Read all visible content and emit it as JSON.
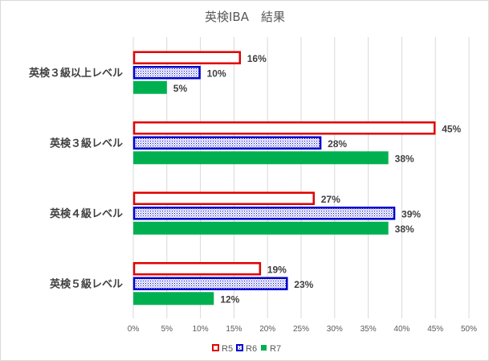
{
  "chart_data": {
    "type": "bar",
    "orientation": "horizontal",
    "title": "英検IBA　結果",
    "categories": [
      "英検３級以上レベル",
      "英検３級レベル",
      "英検４級レベル",
      "英検５級レベル"
    ],
    "series": [
      {
        "name": "R5",
        "values": [
          16,
          45,
          27,
          19
        ],
        "color": "#e00000",
        "fill": "#ffffff"
      },
      {
        "name": "R6",
        "values": [
          10,
          28,
          39,
          23
        ],
        "color": "#0000cc",
        "fill": "dotted"
      },
      {
        "name": "R7",
        "values": [
          5,
          38,
          38,
          12
        ],
        "color": "#00b050",
        "fill": "#00b050"
      }
    ],
    "xlim": [
      0,
      50
    ],
    "xticks": [
      0,
      5,
      10,
      15,
      20,
      25,
      30,
      35,
      40,
      45,
      50
    ],
    "tick_suffix": "%",
    "grid": true,
    "legend": "bottom"
  }
}
